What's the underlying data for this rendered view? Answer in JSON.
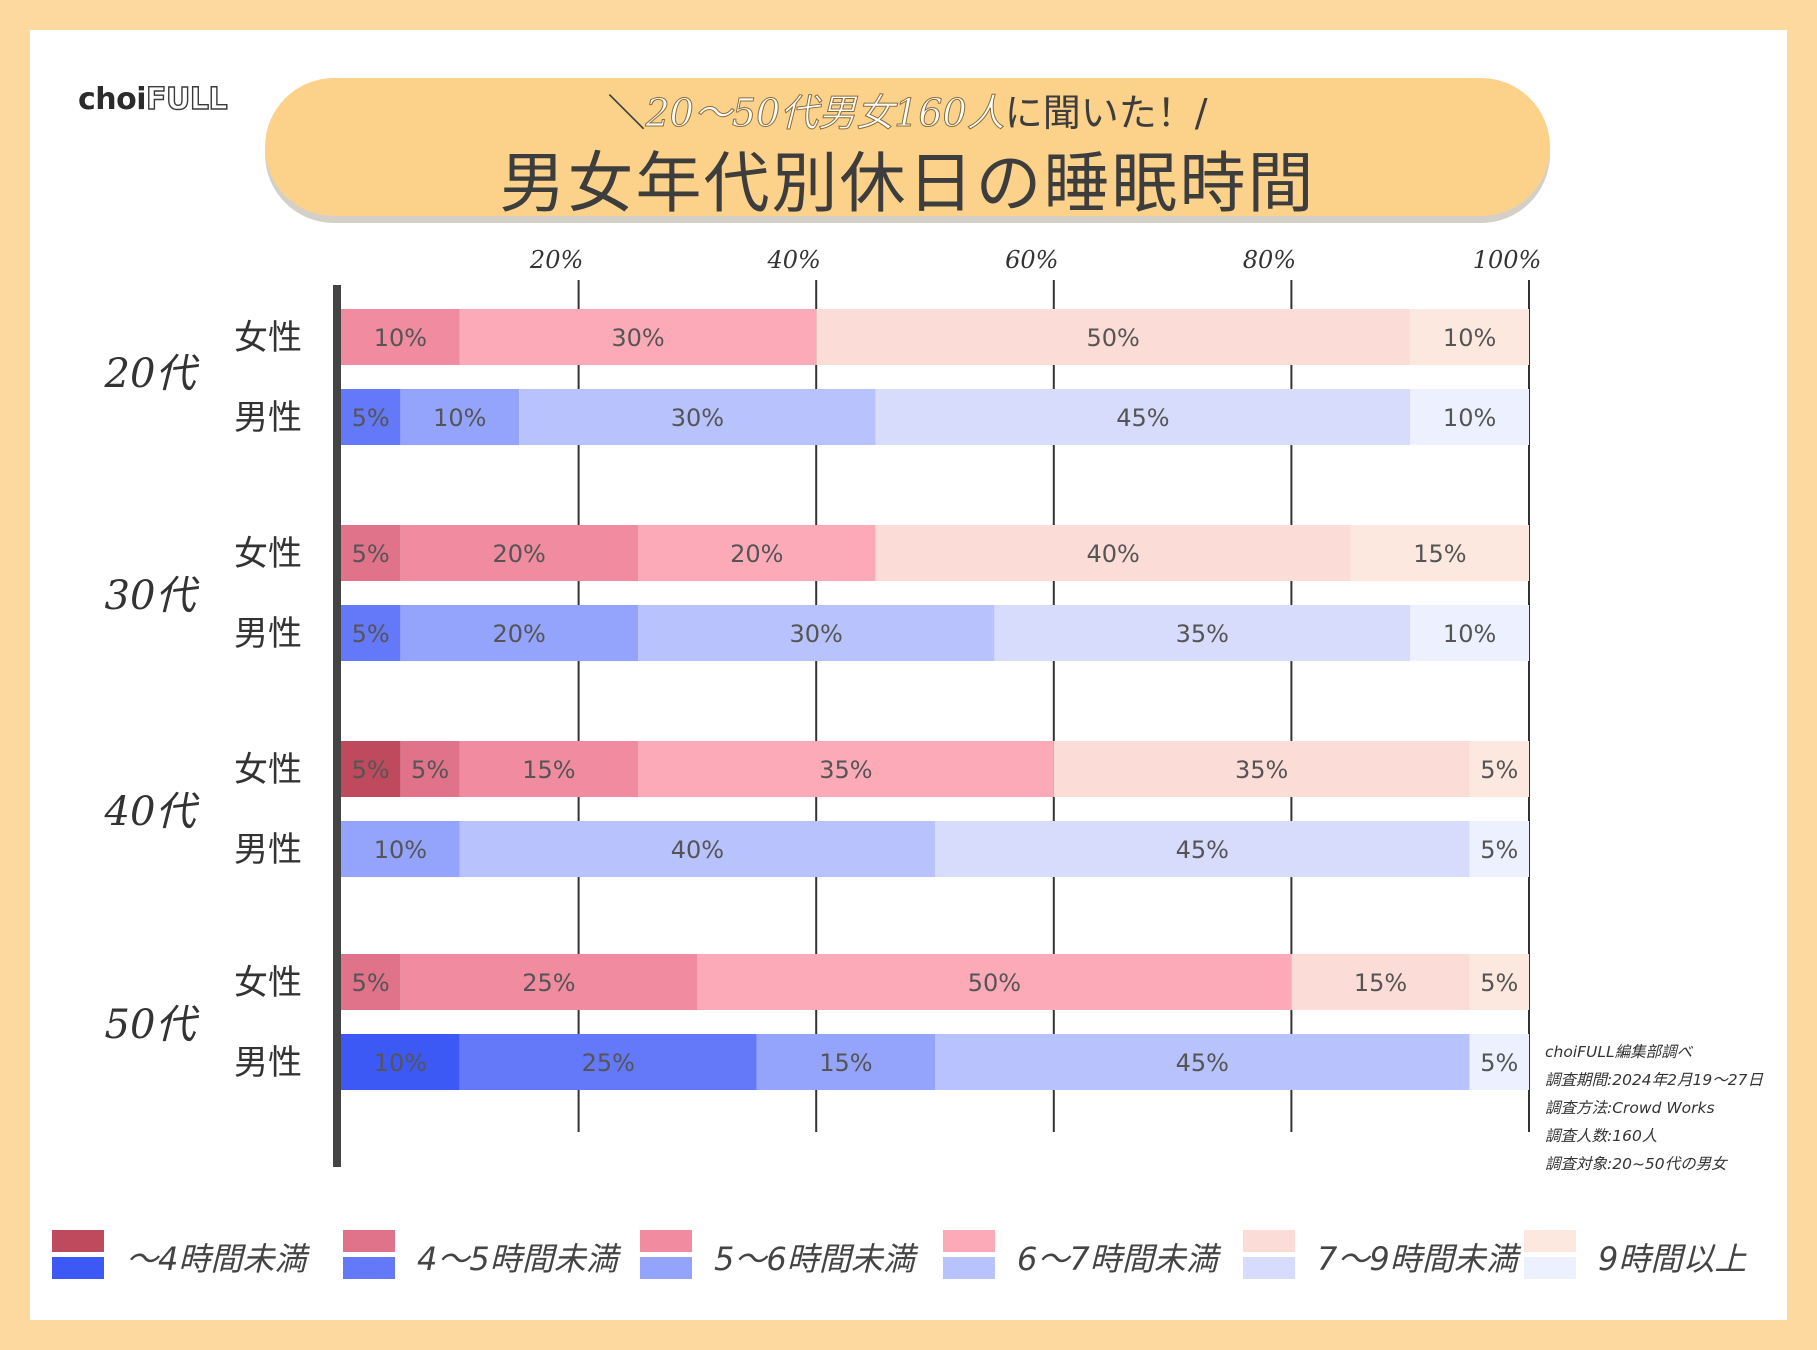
{
  "brand": {
    "logo_main": "choi",
    "logo_accent": "FULL"
  },
  "header": {
    "subtitle_prefix": "＼",
    "subtitle_highlight": "20〜50代男女160人",
    "subtitle_suffix": "に聞いた！/",
    "title": "男女年代別休日の睡眠時間"
  },
  "colors": {
    "female": [
      "#bf4a5e",
      "#e0728a",
      "#f08ba0",
      "#fdaab8",
      "#fcdcd6",
      "#fde8e0"
    ],
    "male": [
      "#3c58f5",
      "#6478fa",
      "#94a3fb",
      "#b8c2fd",
      "#d7dbfc",
      "#ecf0ff"
    ]
  },
  "chart_data": {
    "type": "bar",
    "orientation": "horizontal",
    "stacked": true,
    "title": "男女年代別休日の睡眠時間",
    "x_ticks": [
      "20%",
      "40%",
      "60%",
      "80%",
      "100%"
    ],
    "xlim": [
      0,
      100
    ],
    "categories_legend": [
      "〜4時間未満",
      "4〜5時間未満",
      "5〜6時間未満",
      "6〜7時間未満",
      "7〜9時間未満",
      "9時間以上"
    ],
    "groups": [
      {
        "age": "20代",
        "rows": [
          {
            "gender": "女性",
            "sex": "female",
            "values": [
              0,
              0,
              10,
              30,
              50,
              10
            ],
            "labels": [
              "",
              "",
              "10%",
              "30%",
              "50%",
              "10%"
            ]
          },
          {
            "gender": "男性",
            "sex": "male",
            "values": [
              0,
              5,
              10,
              30,
              45,
              10
            ],
            "labels": [
              "",
              "5%",
              "10%",
              "30%",
              "45%",
              "10%"
            ]
          }
        ]
      },
      {
        "age": "30代",
        "rows": [
          {
            "gender": "女性",
            "sex": "female",
            "values": [
              0,
              5,
              20,
              20,
              40,
              15
            ],
            "labels": [
              "",
              "5%",
              "20%",
              "20%",
              "40%",
              "15%"
            ]
          },
          {
            "gender": "男性",
            "sex": "male",
            "values": [
              0,
              5,
              20,
              30,
              35,
              10
            ],
            "labels": [
              "",
              "5%",
              "20%",
              "30%",
              "35%",
              "10%"
            ]
          }
        ]
      },
      {
        "age": "40代",
        "rows": [
          {
            "gender": "女性",
            "sex": "female",
            "values": [
              5,
              5,
              15,
              35,
              35,
              5
            ],
            "labels": [
              "5%",
              "5%",
              "15%",
              "35%",
              "35%",
              "5%"
            ]
          },
          {
            "gender": "男性",
            "sex": "male",
            "values": [
              0,
              0,
              10,
              40,
              45,
              5
            ],
            "labels": [
              "",
              "",
              "10%",
              "40%",
              "45%",
              "5%"
            ]
          }
        ]
      },
      {
        "age": "50代",
        "rows": [
          {
            "gender": "女性",
            "sex": "female",
            "values": [
              0,
              5,
              25,
              50,
              15,
              5
            ],
            "labels": [
              "",
              "5%",
              "25%",
              "50%",
              "15%",
              "5%"
            ]
          },
          {
            "gender": "男性",
            "sex": "male",
            "values": [
              10,
              25,
              15,
              45,
              0,
              5
            ],
            "labels": [
              "10%",
              "25%",
              "15%",
              "45%",
              "",
              "5%"
            ]
          }
        ]
      }
    ]
  },
  "survey_note": [
    "choiFULL編集部調べ",
    "調査期間:2024年2月19〜27日",
    "調査方法:Crowd Works",
    "調査人数:160人",
    "調査対象:20~50代の男女"
  ],
  "legend": [
    {
      "label": "〜4時間未満"
    },
    {
      "label": "4〜5時間未満"
    },
    {
      "label": "5〜6時間未満"
    },
    {
      "label": "6〜7時間未満"
    },
    {
      "label": "7〜9時間未満"
    },
    {
      "label": "9時間以上"
    }
  ]
}
